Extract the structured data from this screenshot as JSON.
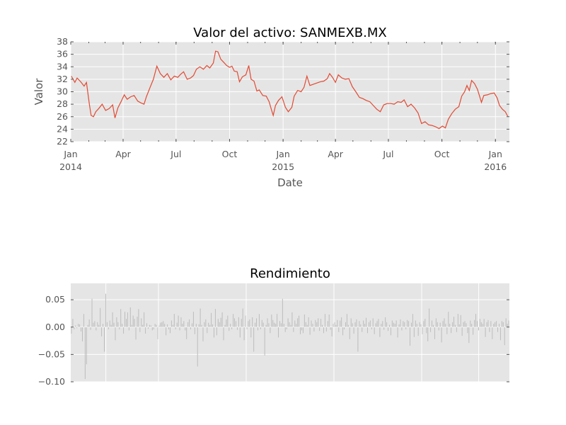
{
  "chart_data": [
    {
      "type": "line",
      "title": "Valor del activo: SANMEXB.MX",
      "xlabel": "Date",
      "ylabel": "Valor",
      "ylim": [
        22,
        38
      ],
      "yticks": [
        "22",
        "24",
        "26",
        "28",
        "30",
        "32",
        "34",
        "36",
        "38"
      ],
      "xlim": [
        "2014-01-01",
        "2016-01-25"
      ],
      "xticks": [
        {
          "date": "2014-01-01",
          "label": "Jan",
          "sublabel": "2014"
        },
        {
          "date": "2014-04-01",
          "label": "Apr",
          "sublabel": ""
        },
        {
          "date": "2014-07-01",
          "label": "Jul",
          "sublabel": ""
        },
        {
          "date": "2014-10-01",
          "label": "Oct",
          "sublabel": ""
        },
        {
          "date": "2015-01-01",
          "label": "Jan",
          "sublabel": "2015"
        },
        {
          "date": "2015-04-01",
          "label": "Apr",
          "sublabel": ""
        },
        {
          "date": "2015-07-01",
          "label": "Jul",
          "sublabel": ""
        },
        {
          "date": "2015-10-01",
          "label": "Oct",
          "sublabel": ""
        },
        {
          "date": "2016-01-01",
          "label": "Jan",
          "sublabel": "2016"
        }
      ],
      "grid": true,
      "series": [
        {
          "color": "#e24a33",
          "points": [
            [
              "2014-01-02",
              32.5
            ],
            [
              "2014-01-08",
              31.5
            ],
            [
              "2014-01-12",
              32.2
            ],
            [
              "2014-01-18",
              31.6
            ],
            [
              "2014-01-24",
              30.9
            ],
            [
              "2014-01-28",
              31.5
            ],
            [
              "2014-02-02",
              28.0
            ],
            [
              "2014-02-05",
              26.2
            ],
            [
              "2014-02-09",
              26.0
            ],
            [
              "2014-02-13",
              26.8
            ],
            [
              "2014-02-18",
              27.3
            ],
            [
              "2014-02-24",
              28.0
            ],
            [
              "2014-03-02",
              27.0
            ],
            [
              "2014-03-08",
              27.3
            ],
            [
              "2014-03-14",
              27.9
            ],
            [
              "2014-03-18",
              25.8
            ],
            [
              "2014-03-23",
              27.4
            ],
            [
              "2014-03-29",
              28.5
            ],
            [
              "2014-04-03",
              29.5
            ],
            [
              "2014-04-08",
              28.8
            ],
            [
              "2014-04-14",
              29.2
            ],
            [
              "2014-04-20",
              29.4
            ],
            [
              "2014-04-26",
              28.5
            ],
            [
              "2014-05-02",
              28.2
            ],
            [
              "2014-05-07",
              28.0
            ],
            [
              "2014-05-11",
              29.2
            ],
            [
              "2014-05-17",
              30.6
            ],
            [
              "2014-05-23",
              32.0
            ],
            [
              "2014-05-29",
              34.1
            ],
            [
              "2014-06-04",
              32.9
            ],
            [
              "2014-06-10",
              32.3
            ],
            [
              "2014-06-16",
              32.9
            ],
            [
              "2014-06-22",
              31.9
            ],
            [
              "2014-06-28",
              32.5
            ],
            [
              "2014-07-04",
              32.3
            ],
            [
              "2014-07-09",
              32.8
            ],
            [
              "2014-07-14",
              33.2
            ],
            [
              "2014-07-20",
              32.0
            ],
            [
              "2014-07-26",
              32.2
            ],
            [
              "2014-07-31",
              32.6
            ],
            [
              "2014-08-05",
              33.6
            ],
            [
              "2014-08-11",
              34.0
            ],
            [
              "2014-08-17",
              33.6
            ],
            [
              "2014-08-23",
              34.2
            ],
            [
              "2014-08-28",
              33.8
            ],
            [
              "2014-09-03",
              34.6
            ],
            [
              "2014-09-07",
              36.5
            ],
            [
              "2014-09-11",
              36.4
            ],
            [
              "2014-09-16",
              35.2
            ],
            [
              "2014-09-21",
              34.7
            ],
            [
              "2014-09-26",
              34.2
            ],
            [
              "2014-10-01",
              33.9
            ],
            [
              "2014-10-05",
              34.1
            ],
            [
              "2014-10-09",
              33.3
            ],
            [
              "2014-10-14",
              33.2
            ],
            [
              "2014-10-18",
              31.6
            ],
            [
              "2014-10-23",
              32.4
            ],
            [
              "2014-10-29",
              32.7
            ],
            [
              "2014-11-03",
              34.2
            ],
            [
              "2014-11-07",
              32.0
            ],
            [
              "2014-11-12",
              31.7
            ],
            [
              "2014-11-17",
              30.1
            ],
            [
              "2014-11-21",
              30.3
            ],
            [
              "2014-11-27",
              29.4
            ],
            [
              "2014-12-03",
              29.3
            ],
            [
              "2014-12-08",
              28.4
            ],
            [
              "2014-12-12",
              27.1
            ],
            [
              "2014-12-15",
              26.2
            ],
            [
              "2014-12-19",
              27.8
            ],
            [
              "2014-12-24",
              28.6
            ],
            [
              "2014-12-30",
              29.2
            ],
            [
              "2015-01-05",
              27.5
            ],
            [
              "2015-01-10",
              26.8
            ],
            [
              "2015-01-16",
              27.5
            ],
            [
              "2015-01-20",
              29.3
            ],
            [
              "2015-01-26",
              30.2
            ],
            [
              "2015-02-01",
              30.0
            ],
            [
              "2015-02-06",
              30.7
            ],
            [
              "2015-02-11",
              32.5
            ],
            [
              "2015-02-16",
              31.0
            ],
            [
              "2015-02-22",
              31.2
            ],
            [
              "2015-02-28",
              31.4
            ],
            [
              "2015-03-06",
              31.6
            ],
            [
              "2015-03-12",
              31.7
            ],
            [
              "2015-03-18",
              32.1
            ],
            [
              "2015-03-22",
              32.9
            ],
            [
              "2015-03-27",
              32.3
            ],
            [
              "2015-04-01",
              31.5
            ],
            [
              "2015-04-06",
              32.7
            ],
            [
              "2015-04-12",
              32.2
            ],
            [
              "2015-04-18",
              32.0
            ],
            [
              "2015-04-24",
              32.1
            ],
            [
              "2015-04-30",
              30.8
            ],
            [
              "2015-05-06",
              30.0
            ],
            [
              "2015-05-12",
              29.1
            ],
            [
              "2015-05-18",
              28.9
            ],
            [
              "2015-05-24",
              28.6
            ],
            [
              "2015-05-30",
              28.4
            ],
            [
              "2015-06-05",
              27.8
            ],
            [
              "2015-06-11",
              27.2
            ],
            [
              "2015-06-17",
              26.8
            ],
            [
              "2015-06-23",
              27.9
            ],
            [
              "2015-06-29",
              28.1
            ],
            [
              "2015-07-05",
              28.1
            ],
            [
              "2015-07-11",
              28.0
            ],
            [
              "2015-07-17",
              28.4
            ],
            [
              "2015-07-23",
              28.3
            ],
            [
              "2015-07-28",
              28.7
            ],
            [
              "2015-08-03",
              27.6
            ],
            [
              "2015-08-09",
              28.0
            ],
            [
              "2015-08-15",
              27.4
            ],
            [
              "2015-08-21",
              26.6
            ],
            [
              "2015-08-27",
              24.9
            ],
            [
              "2015-09-02",
              25.2
            ],
            [
              "2015-09-08",
              24.7
            ],
            [
              "2015-09-14",
              24.6
            ],
            [
              "2015-09-20",
              24.4
            ],
            [
              "2015-09-26",
              24.1
            ],
            [
              "2015-10-02",
              24.5
            ],
            [
              "2015-10-07",
              24.2
            ],
            [
              "2015-10-12",
              25.6
            ],
            [
              "2015-10-18",
              26.5
            ],
            [
              "2015-10-24",
              27.2
            ],
            [
              "2015-10-30",
              27.6
            ],
            [
              "2015-11-04",
              29.3
            ],
            [
              "2015-11-09",
              30.0
            ],
            [
              "2015-11-13",
              31.0
            ],
            [
              "2015-11-17",
              30.2
            ],
            [
              "2015-11-21",
              31.8
            ],
            [
              "2015-11-26",
              31.3
            ],
            [
              "2015-12-01",
              30.4
            ],
            [
              "2015-12-05",
              29.2
            ],
            [
              "2015-12-08",
              28.3
            ],
            [
              "2015-12-12",
              29.4
            ],
            [
              "2015-12-18",
              29.5
            ],
            [
              "2015-12-24",
              29.7
            ],
            [
              "2015-12-30",
              29.8
            ],
            [
              "2016-01-04",
              29.0
            ],
            [
              "2016-01-08",
              27.8
            ],
            [
              "2016-01-13",
              27.2
            ],
            [
              "2016-01-18",
              26.8
            ],
            [
              "2016-01-22",
              26.1
            ]
          ]
        }
      ]
    },
    {
      "type": "bar",
      "title": "Rendimiento",
      "ylim": [
        -0.1,
        0.08
      ],
      "yticks": [
        "0.05",
        "0.00",
        "−0.05",
        "−0.10"
      ],
      "ytick_values": [
        0.05,
        0.0,
        -0.05,
        -0.1
      ],
      "grid": true,
      "bar_color": "#bbbbbb",
      "values": [
        -0.012,
        0.015,
        -0.004,
        0.003,
        -0.002,
        0.006,
        0.005,
        -0.008,
        -0.026,
        0.024,
        -0.095,
        -0.068,
        0.004,
        0.014,
        -0.005,
        0.052,
        0.008,
        0.011,
        -0.006,
        0.009,
        0.004,
        0.035,
        -0.017,
        0.006,
        -0.045,
        0.061,
        0.009,
        -0.004,
        0.012,
        0.004,
        0.027,
        0.008,
        -0.024,
        0.018,
        0.009,
        -0.004,
        0.033,
        0.006,
        -0.012,
        0.028,
        0.015,
        0.027,
        -0.006,
        0.036,
        0.004,
        0.021,
        0.015,
        -0.023,
        0.019,
        0.033,
        -0.009,
        0.016,
        0.004,
        0.027,
        -0.012,
        0.007,
        -0.003,
        0.004,
        0.003,
        -0.006,
        -0.004,
        0.006,
        0.004,
        -0.022,
        0.003,
        0.008,
        0.009,
        0.011,
        0.006,
        -0.015,
        0.005,
        -0.004,
        -0.011,
        0.012,
        0.004,
        0.024,
        -0.004,
        0.008,
        0.021,
        -0.006,
        0.018,
        0.006,
        0.011,
        -0.006,
        -0.022,
        0.009,
        0.014,
        -0.004,
        0.007,
        0.028,
        -0.013,
        0.006,
        -0.072,
        0.005,
        0.034,
        0.004,
        -0.026,
        0.009,
        0.014,
        -0.011,
        0.008,
        0.004,
        0.026,
        0.005,
        -0.019,
        0.033,
        -0.015,
        0.015,
        0.009,
        0.017,
        0.027,
        -0.024,
        0.004,
        0.014,
        0.021,
        -0.007,
        0.006,
        -0.004,
        0.024,
        0.016,
        0.011,
        -0.005,
        0.018,
        -0.019,
        0.015,
        0.034,
        -0.024,
        0.021,
        -0.004,
        0.011,
        0.014,
        -0.019,
        0.018,
        -0.045,
        0.008,
        0.016,
        -0.006,
        0.024,
        -0.004,
        0.013,
        0.008,
        -0.052,
        0.004,
        0.016,
        0.007,
        -0.011,
        0.023,
        0.013,
        0.008,
        0.006,
        0.024,
        -0.019,
        0.011,
        0.007,
        0.052,
        0.006,
        -0.009,
        -0.004,
        0.016,
        0.009,
        0.004,
        0.027,
        -0.009,
        0.012,
        0.006,
        0.016,
        0.021,
        -0.013,
        -0.006,
        -0.011,
        0.023,
        0.009,
        0.004,
        0.018,
        -0.014,
        0.012,
        0.006,
        -0.008,
        0.013,
        0.009,
        0.016,
        -0.007,
        0.015,
        0.004,
        -0.011,
        0.024,
        -0.008,
        0.011,
        0.023,
        -0.005,
        -0.017,
        0.006,
        0.009,
        0.004,
        0.013,
        -0.009,
        0.012,
        0.018,
        -0.015,
        -0.004,
        0.009,
        0.024,
        0.004,
        -0.022,
        0.016,
        0.007,
        -0.012,
        0.009,
        0.014,
        -0.045,
        0.011,
        0.005,
        -0.009,
        0.012,
        0.006,
        0.017,
        -0.011,
        0.009,
        0.012,
        -0.004,
        0.016,
        -0.013,
        0.007,
        0.011,
        0.015,
        -0.018,
        0.006,
        0.011,
        -0.005,
        0.018,
        0.009,
        -0.007,
        0.004,
        -0.015,
        0.012,
        0.008,
        0.006,
        0.012,
        -0.019,
        0.005,
        0.014,
        -0.006,
        0.011,
        0.009,
        -0.004,
        0.013,
        0.011,
        -0.034,
        0.008,
        0.024,
        -0.018,
        0.012,
        0.006,
        -0.016,
        0.009,
        0.005,
        -0.013,
        0.011,
        0.015,
        -0.011,
        -0.026,
        0.034,
        -0.009,
        0.012,
        0.004,
        -0.022,
        0.016,
        0.009,
        -0.006,
        0.008,
        -0.028,
        0.011,
        0.016,
        0.006,
        -0.013,
        0.028,
        0.006,
        -0.011,
        0.009,
        0.019,
        0.004,
        -0.009,
        0.024,
        0.005,
        0.022,
        -0.016,
        0.009,
        0.011,
        0.007,
        -0.011,
        -0.029,
        0.012,
        0.006,
        -0.014,
        0.013,
        0.024,
        0.011,
        -0.006,
        0.015,
        0.009,
        0.006,
        0.015,
        -0.018,
        0.009,
        0.013,
        -0.009,
        0.011,
        -0.022,
        0.006,
        0.009,
        0.011,
        -0.009,
        0.006,
        -0.024,
        0.011,
        0.009,
        -0.033,
        0.016,
        0.006,
        0.012
      ]
    }
  ]
}
